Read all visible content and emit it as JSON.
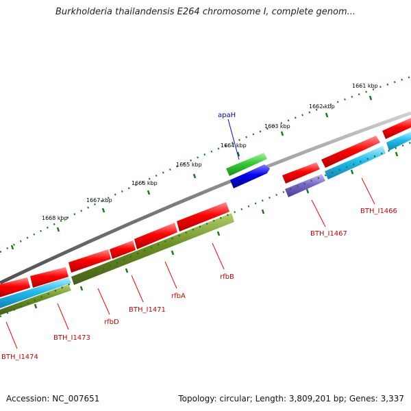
{
  "title": "Burkholderia thailandensis E264 chromosome I, complete genom...",
  "footer": {
    "accession": "Accession: NC_007651",
    "summary": "Topology: circular; Length: 3,809,201 bp; Genes: 3,337"
  },
  "scale_labels": [
    "1661 kbp",
    "1662 kbp",
    "1663 kbp",
    "1664 kbp",
    "1665 kbp",
    "1666 kbp",
    "1667 kbp",
    "1668 kbp"
  ],
  "gene_labels": [
    "apaH",
    "BTH_I1466",
    "BTH_I1467",
    "rfbB",
    "rfbA",
    "BTH_I1471",
    "rfbD",
    "BTH_I1473",
    "BTH_I1474"
  ],
  "colors": {
    "backbone": "#808080",
    "gene_red": "#ff0000",
    "gene_green": "#33cc33",
    "gene_blue": "#0000ee",
    "gene_cyan": "#22bbee",
    "gene_olive": "#6b8e23",
    "gene_purple": "#7766cc",
    "tick": "#1a7a1a",
    "label_red": "#cc0000",
    "label_blue": "#0000aa"
  }
}
